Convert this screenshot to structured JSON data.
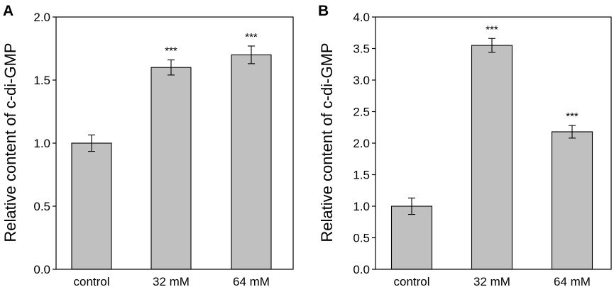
{
  "chart_data": [
    {
      "type": "bar",
      "panel_label": "A",
      "categories": [
        "control",
        "32 mM",
        "64 mM"
      ],
      "values": [
        1.0,
        1.6,
        1.7
      ],
      "errors": [
        0.065,
        0.06,
        0.07
      ],
      "significance": [
        "",
        "***",
        "***"
      ],
      "ylabel": "Relative content of c-di-GMP",
      "xlabel": "",
      "ylim": [
        0,
        2.0
      ],
      "yticks": [
        "0.0",
        "0.5",
        "1.0",
        "1.5",
        "2.0"
      ],
      "bar_color": "#c0c0c0"
    },
    {
      "type": "bar",
      "panel_label": "B",
      "categories": [
        "control",
        "32 mM",
        "64 mM"
      ],
      "values": [
        1.0,
        3.55,
        2.18
      ],
      "errors": [
        0.13,
        0.11,
        0.1
      ],
      "significance": [
        "",
        "***",
        "***"
      ],
      "ylabel": "Relative content of c-di-GMP",
      "xlabel": "",
      "ylim": [
        0,
        4.0
      ],
      "yticks": [
        "0.0",
        "0.5",
        "1.0",
        "1.5",
        "2.0",
        "2.5",
        "3.0",
        "3.5",
        "4.0"
      ],
      "bar_color": "#c0c0c0"
    }
  ]
}
